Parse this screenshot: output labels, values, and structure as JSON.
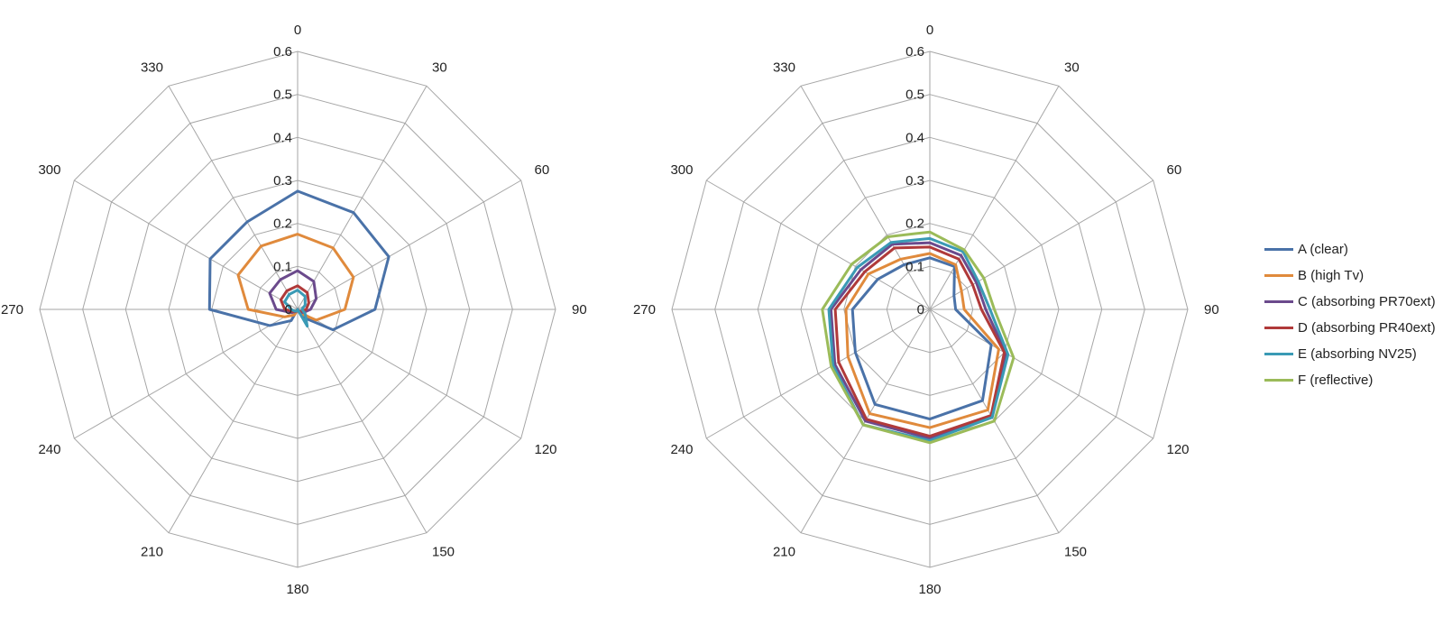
{
  "chart_data": [
    {
      "type": "radar",
      "angles": [
        0,
        30,
        60,
        90,
        120,
        150,
        180,
        210,
        240,
        270,
        300,
        330
      ],
      "radial_ticks": [
        "0",
        "0.1",
        "0.2",
        "0.3",
        "0.4",
        "0.5",
        "0.6"
      ],
      "rlim": [
        0,
        0.6
      ],
      "series": [
        {
          "name": "A (clear)",
          "color": "#4a72a8",
          "values": [
            0.275,
            0.26,
            0.245,
            0.18,
            0.095,
            0.02,
            0.0,
            0.03,
            0.075,
            0.205,
            0.235,
            0.235
          ]
        },
        {
          "name": "B (high Tv)",
          "color": "#e08a3c",
          "values": [
            0.175,
            0.165,
            0.15,
            0.11,
            0.05,
            0.01,
            0.0,
            0.015,
            0.035,
            0.115,
            0.16,
            0.17
          ]
        },
        {
          "name": "C (absorbing PR70ext)",
          "color": "#6b4a8c",
          "values": [
            0.09,
            0.075,
            0.05,
            0.03,
            0.015,
            0.005,
            0.0,
            0.005,
            0.015,
            0.05,
            0.075,
            0.08
          ]
        },
        {
          "name": "D (absorbing PR40ext)",
          "color": "#b03a3a",
          "values": [
            0.055,
            0.045,
            0.03,
            0.02,
            0.01,
            0.004,
            0.0,
            0.004,
            0.01,
            0.03,
            0.045,
            0.05
          ]
        },
        {
          "name": "E (absorbing NV25)",
          "color": "#3a9ab5",
          "values": [
            0.045,
            0.035,
            0.02,
            0.01,
            0.02,
            0.045,
            0.0,
            0.004,
            0.008,
            0.015,
            0.035,
            0.04
          ]
        }
      ]
    },
    {
      "type": "radar",
      "angles": [
        0,
        30,
        60,
        90,
        120,
        150,
        180,
        210,
        240,
        270,
        300,
        330
      ],
      "radial_ticks": [
        "0",
        "0.1",
        "0.2",
        "0.3",
        "0.4",
        "0.5",
        "0.6"
      ],
      "rlim": [
        0,
        0.6
      ],
      "series": [
        {
          "name": "A (clear)",
          "color": "#4a72a8",
          "values": [
            0.12,
            0.115,
            0.065,
            0.06,
            0.165,
            0.245,
            0.255,
            0.255,
            0.2,
            0.18,
            0.14,
            0.12
          ]
        },
        {
          "name": "B (high Tv)",
          "color": "#e08a3c",
          "values": [
            0.13,
            0.12,
            0.085,
            0.08,
            0.185,
            0.27,
            0.275,
            0.28,
            0.22,
            0.195,
            0.165,
            0.135
          ]
        },
        {
          "name": "C (absorbing PR70ext)",
          "color": "#6b4a8c",
          "values": [
            0.155,
            0.145,
            0.125,
            0.13,
            0.205,
            0.29,
            0.3,
            0.3,
            0.255,
            0.23,
            0.185,
            0.175
          ]
        },
        {
          "name": "D (absorbing PR40ext)",
          "color": "#b03a3a",
          "values": [
            0.145,
            0.135,
            0.115,
            0.12,
            0.2,
            0.285,
            0.295,
            0.295,
            0.245,
            0.22,
            0.175,
            0.165
          ]
        },
        {
          "name": "E (absorbing NV25)",
          "color": "#3a9ab5",
          "values": [
            0.165,
            0.155,
            0.13,
            0.14,
            0.21,
            0.29,
            0.305,
            0.31,
            0.26,
            0.235,
            0.195,
            0.18
          ]
        },
        {
          "name": "F (reflective)",
          "color": "#9bbb59",
          "values": [
            0.18,
            0.16,
            0.145,
            0.15,
            0.225,
            0.3,
            0.31,
            0.31,
            0.265,
            0.25,
            0.21,
            0.195
          ]
        }
      ]
    }
  ],
  "legend": {
    "placement": "right",
    "items": [
      {
        "name": "A (clear)",
        "color": "#4a72a8"
      },
      {
        "name": "B (high Tv)",
        "color": "#e08a3c"
      },
      {
        "name": "C (absorbing PR70ext)",
        "color": "#6b4a8c"
      },
      {
        "name": "D (absorbing PR40ext)",
        "color": "#b03a3a"
      },
      {
        "name": "E (absorbing NV25)",
        "color": "#3a9ab5"
      },
      {
        "name": "F (reflective)",
        "color": "#9bbb59"
      }
    ]
  }
}
